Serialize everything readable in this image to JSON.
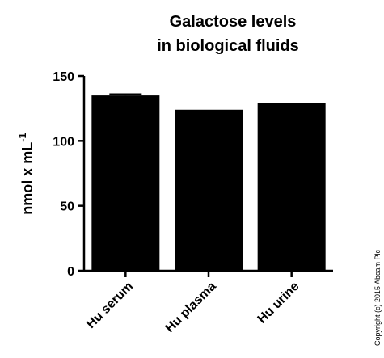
{
  "chart_data": {
    "type": "bar",
    "title_line1": "Galactose levels",
    "title_line2": "in biological fluids",
    "ylabel": "nmol x mL",
    "ylabel_superscript": "-1",
    "xlabel": "",
    "categories": [
      "Hu serum",
      "Hu plasma",
      "Hu urine"
    ],
    "values": [
      135,
      124,
      129
    ],
    "errors": [
      1,
      0,
      0
    ],
    "ylim": [
      0,
      150
    ],
    "yticks": [
      0,
      50,
      100,
      150
    ],
    "bar_color": "#000000",
    "grid": false,
    "legend": "none"
  },
  "copyright": "Copyright (c) 2015 Abcam Plc"
}
